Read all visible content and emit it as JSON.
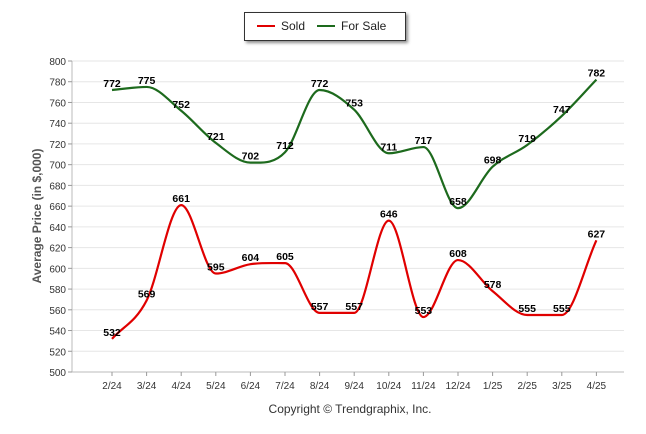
{
  "chart_data": {
    "type": "line",
    "categories": [
      "2/24",
      "3/24",
      "4/24",
      "5/24",
      "6/24",
      "7/24",
      "8/24",
      "9/24",
      "10/24",
      "11/24",
      "12/24",
      "1/25",
      "2/25",
      "3/25",
      "4/25"
    ],
    "series": [
      {
        "name": "Sold",
        "color": "#e00000",
        "values": [
          532,
          569,
          661,
          595,
          604,
          605,
          557,
          557,
          646,
          553,
          608,
          578,
          555,
          555,
          627
        ]
      },
      {
        "name": "For Sale",
        "color": "#1d6a1d",
        "values": [
          772,
          775,
          752,
          721,
          702,
          712,
          772,
          753,
          711,
          717,
          658,
          698,
          719,
          747,
          782
        ]
      }
    ],
    "ylabel": "Average Price (in $,000)",
    "xlabel": "",
    "ylim": [
      500,
      800
    ],
    "yticks": [
      500,
      520,
      540,
      560,
      580,
      600,
      620,
      640,
      660,
      680,
      700,
      720,
      740,
      760,
      780,
      800
    ],
    "grid": true,
    "legend": "top-center"
  },
  "copyright": "Copyright © Trendgraphix, Inc."
}
